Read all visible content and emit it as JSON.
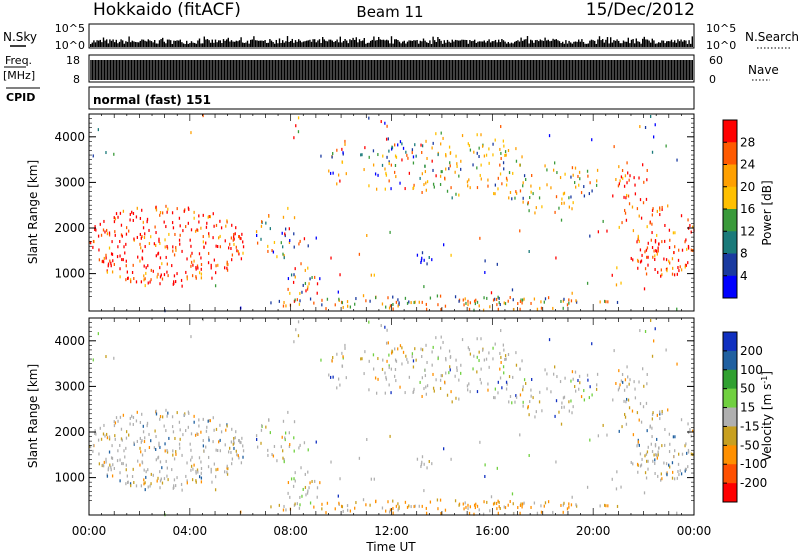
{
  "header": {
    "station": "Hokkaido (fitACF)",
    "beam": "Beam 11",
    "date": "15/Dec/2012"
  },
  "panels": {
    "nsky_label": "N.Sky",
    "nsky_ticks_left": [
      "10^5",
      "10^0"
    ],
    "nsearch_label": "N.Search",
    "nsearch_ticks_right": [
      "10^5",
      "10^0"
    ],
    "freq_label_line1": "Freq.",
    "freq_label_line2": "[MHz]",
    "freq_ticks": [
      "18",
      "8"
    ],
    "nave_label": "Nave",
    "nave_ticks": [
      "60",
      "0"
    ],
    "cpid_label": "CPID",
    "cpid_text": "normal (fast) 151"
  },
  "chart_data": [
    {
      "type": "heatmap",
      "quantity": "power",
      "ylabel": "Slant Range [km]",
      "y_ticks": [
        1000,
        2000,
        3000,
        4000
      ],
      "ylim": [
        180,
        4500
      ],
      "colorbar_label": "Power [dB]",
      "colorbar_ticks": [
        "28",
        "24",
        "20",
        "16",
        "12",
        "8",
        "4"
      ],
      "colorbar_colors": [
        "#ff0000",
        "#ff5a00",
        "#ffa000",
        "#ffc000",
        "#3a9a3a",
        "#1a7a7a",
        "#1a3aa0",
        "#0000ff"
      ]
    },
    {
      "type": "heatmap",
      "quantity": "velocity",
      "ylabel": "Slant Range [km]",
      "y_ticks": [
        1000,
        2000,
        3000,
        4000
      ],
      "ylim": [
        180,
        4500
      ],
      "colorbar_label_main": "Velocity [m s",
      "colorbar_label_sup": "-1",
      "colorbar_label_end": "]",
      "colorbar_ticks": [
        "200",
        "100",
        "50",
        "15",
        "-15",
        "-50",
        "-100",
        "-200"
      ],
      "colorbar_colors": [
        "#1030c0",
        "#2060a0",
        "#30a030",
        "#70d040",
        "#b0b0b0",
        "#c8a020",
        "#ff9000",
        "#ff5000",
        "#ff0000"
      ]
    }
  ],
  "time_axis": {
    "labels": [
      "00:00",
      "04:00",
      "08:00",
      "12:00",
      "16:00",
      "20:00",
      "00:00"
    ],
    "xlabel": "Time UT"
  }
}
